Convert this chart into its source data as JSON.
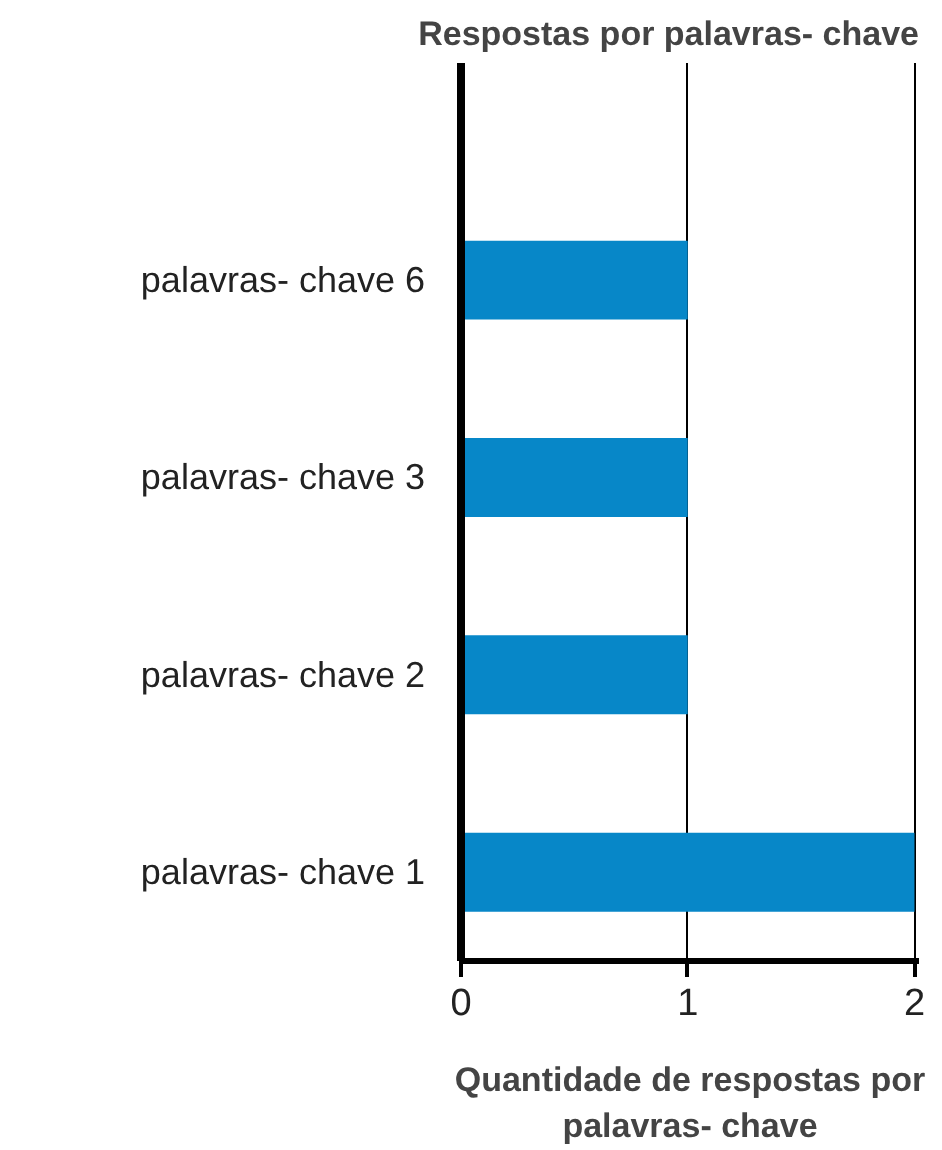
{
  "chart_data": {
    "type": "bar",
    "orientation": "horizontal",
    "title": "Respostas por palavras- chave",
    "xlabel": "Quantidade de respostas por palavras- chave",
    "categories": [
      "palavras- chave 6",
      "palavras- chave 3",
      "palavras- chave 2",
      "palavras- chave 1"
    ],
    "values": [
      1,
      1,
      1,
      2
    ],
    "color": "#0787c8",
    "xlim": [
      0,
      2.02
    ],
    "xticks": [
      0,
      1,
      2
    ],
    "grid": "x"
  }
}
